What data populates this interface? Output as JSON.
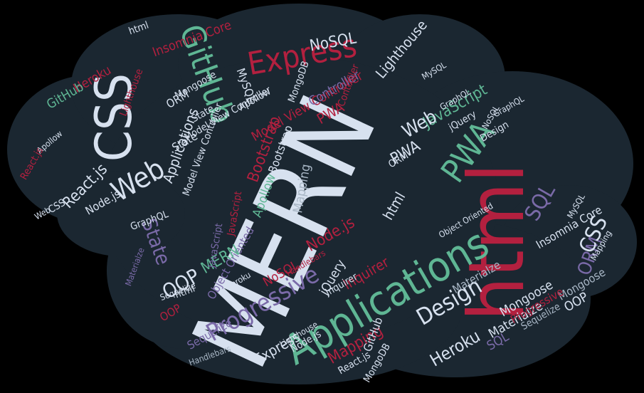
{
  "image": {
    "kind": "word-cloud",
    "background": "#000000",
    "cloud_fill": "#1b2731"
  },
  "palette": {
    "white": "#d7e1ef",
    "red": "#b3203f",
    "green": "#5fb694",
    "purple": "#7a6aa8",
    "gray": "#a9b7c6",
    "pink": "#c5456b"
  },
  "words": [
    "MERN",
    "html",
    "Applications",
    "CSS",
    "Express",
    "GitHub",
    "PWA",
    "Progressive",
    "Design",
    "JavaScript",
    "React.js",
    "Web",
    "Node.js",
    "NoSQL",
    "SQL",
    "State",
    "ORM",
    "OOP",
    "Heroku",
    "Mapping",
    "Apollow",
    "Model View Controller",
    "Insomnia Core",
    "Lighthouse",
    "Mongoose",
    "Materialze",
    "Sequelize",
    "MySQL",
    "GraphQL",
    "Bootstrap",
    "jQuery",
    "MongoDB",
    "Inquirer",
    "Object Oriented",
    "Controller",
    "Handlebars"
  ]
}
